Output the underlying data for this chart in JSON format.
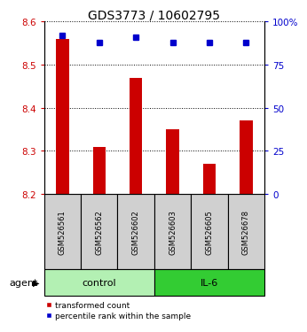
{
  "title": "GDS3773 / 10602795",
  "samples": [
    "GSM526561",
    "GSM526562",
    "GSM526602",
    "GSM526603",
    "GSM526605",
    "GSM526678"
  ],
  "red_values": [
    8.56,
    8.31,
    8.47,
    8.35,
    8.27,
    8.37
  ],
  "blue_values": [
    92,
    88,
    91,
    88,
    88,
    88
  ],
  "ylim_left": [
    8.2,
    8.6
  ],
  "ylim_right": [
    0,
    100
  ],
  "yticks_left": [
    8.2,
    8.3,
    8.4,
    8.5,
    8.6
  ],
  "yticks_right": [
    0,
    25,
    50,
    75,
    100
  ],
  "ytick_labels_right": [
    "0",
    "25",
    "50",
    "75",
    "100%"
  ],
  "groups": [
    {
      "label": "control",
      "indices": [
        0,
        1,
        2
      ],
      "color": "#b3f0b3"
    },
    {
      "label": "IL-6",
      "indices": [
        3,
        4,
        5
      ],
      "color": "#33cc33"
    }
  ],
  "agent_label": "agent",
  "bar_color": "#cc0000",
  "dot_color": "#0000cc",
  "bar_bottom": 8.2,
  "tick_label_color_left": "#cc0000",
  "tick_label_color_right": "#0000cc",
  "legend_items": [
    "transformed count",
    "percentile rank within the sample"
  ],
  "bar_width": 0.35,
  "sample_box_color": "#d0d0d0",
  "title_fontsize": 10,
  "tick_fontsize": 7.5,
  "sample_fontsize": 6,
  "group_fontsize": 8,
  "legend_fontsize": 6.5
}
